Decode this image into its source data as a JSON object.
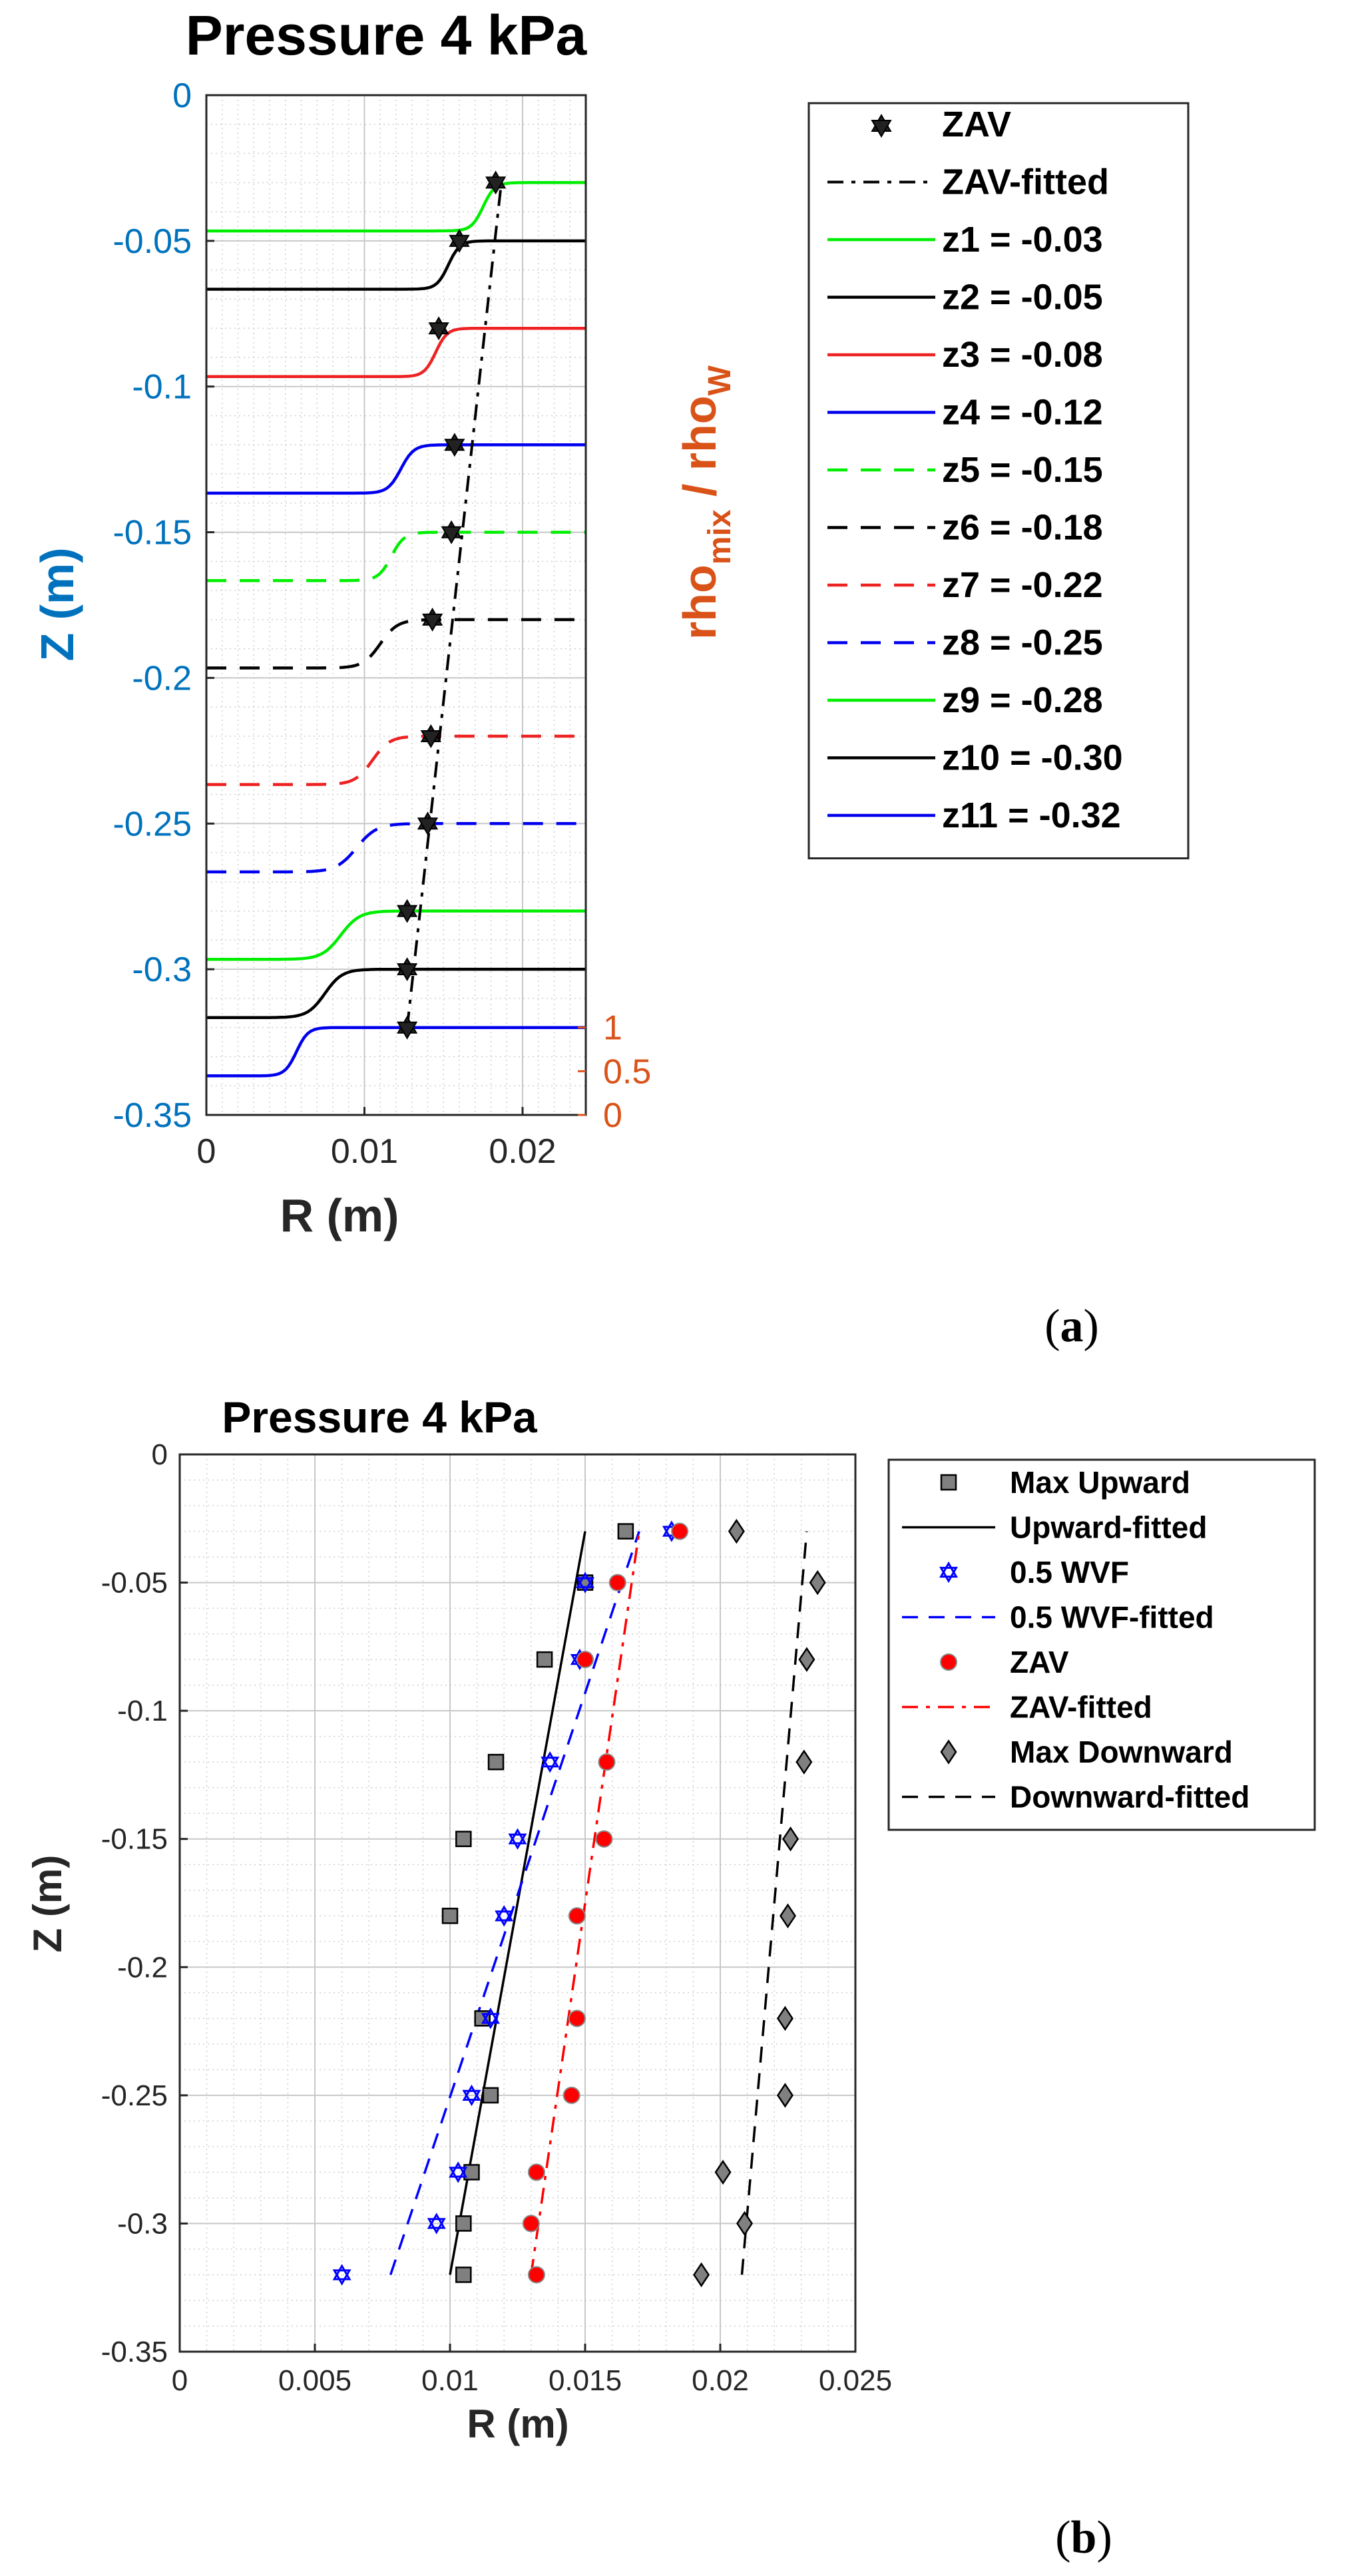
{
  "panel_a": {
    "letter": "a",
    "chart_data": {
      "type": "line",
      "title": "Pressure 4 kPa",
      "xlabel": "R (m)",
      "ylabel": "Z (m)",
      "y2label_main": "rho",
      "y2label_sub1": "mix",
      "y2label_sep": " / rho",
      "y2label_sub2": "W",
      "xlim": [
        0,
        0.024
      ],
      "ylim": [
        -0.35,
        0
      ],
      "xticks": [
        0,
        0.01,
        0.02
      ],
      "xtick_labels": [
        "0",
        "0.01",
        "0.02"
      ],
      "yticks": [
        0,
        -0.05,
        -0.1,
        -0.15,
        -0.2,
        -0.25,
        -0.3,
        -0.35
      ],
      "ytick_labels": [
        "0",
        "-0.05",
        "-0.1",
        "-0.15",
        "-0.2",
        "-0.25",
        "-0.3",
        "-0.35"
      ],
      "y2ticks": [
        0,
        0.5,
        1
      ],
      "y2tick_labels": [
        "0",
        "0.5",
        "1"
      ],
      "grid": true,
      "legend_position": "outside-right",
      "colors": {
        "left_axis": "#0072bd",
        "right_axis": "#d95319"
      },
      "zav": {
        "name": "ZAV",
        "r": [
          0.0183,
          0.016,
          0.0147,
          0.0157,
          0.0155,
          0.0143,
          0.0142,
          0.014,
          0.0127,
          0.0127,
          0.0127
        ],
        "z": [
          -0.03,
          -0.05,
          -0.08,
          -0.12,
          -0.15,
          -0.18,
          -0.22,
          -0.25,
          -0.28,
          -0.3,
          -0.32
        ]
      },
      "zav_fitted": {
        "name": "ZAV-fitted",
        "r": [
          0.0127,
          0.0187
        ],
        "z": [
          -0.32,
          -0.028
        ]
      },
      "profiles": [
        {
          "name": "z1 = -0.03",
          "z": -0.03,
          "level_low": 0.0167,
          "level_high": 0.0333,
          "transition_r": 0.0175,
          "width": 0.0008,
          "color": "#00ee00",
          "dash": "solid"
        },
        {
          "name": "z2 = -0.05",
          "z": -0.05,
          "level_low": 0.0167,
          "level_high": 0.0333,
          "transition_r": 0.0153,
          "width": 0.0008,
          "color": "#000000",
          "dash": "solid"
        },
        {
          "name": "z3 = -0.08",
          "z": -0.08,
          "level_low": 0.0167,
          "level_high": 0.0333,
          "transition_r": 0.0145,
          "width": 0.0008,
          "color": "#ee2222",
          "dash": "solid"
        },
        {
          "name": "z4 = -0.12",
          "z": -0.12,
          "level_low": 0.0167,
          "level_high": 0.0333,
          "transition_r": 0.0123,
          "width": 0.0009,
          "color": "#0000ee",
          "dash": "solid"
        },
        {
          "name": "z5 = -0.15",
          "z": -0.15,
          "level_low": 0.0167,
          "level_high": 0.0333,
          "transition_r": 0.0117,
          "width": 0.0009,
          "color": "#00ee00",
          "dash": "dashed"
        },
        {
          "name": "z6 = -0.18",
          "z": -0.18,
          "level_low": 0.0167,
          "level_high": 0.0333,
          "transition_r": 0.011,
          "width": 0.0012,
          "color": "#000000",
          "dash": "dashed"
        },
        {
          "name": "z7 = -0.22",
          "z": -0.22,
          "level_low": 0.0167,
          "level_high": 0.0333,
          "transition_r": 0.0105,
          "width": 0.0012,
          "color": "#ee2222",
          "dash": "dashed"
        },
        {
          "name": "z8 = -0.25",
          "z": -0.25,
          "level_low": 0.0167,
          "level_high": 0.0333,
          "transition_r": 0.0095,
          "width": 0.0014,
          "color": "#0000ee",
          "dash": "dashed"
        },
        {
          "name": "z9 = -0.28",
          "z": -0.28,
          "level_low": 0.0167,
          "level_high": 0.0333,
          "transition_r": 0.0085,
          "width": 0.0013,
          "color": "#00ee00",
          "dash": "solid"
        },
        {
          "name": "z10 = -0.30",
          "z": -0.3,
          "level_low": 0.0167,
          "level_high": 0.0333,
          "transition_r": 0.0075,
          "width": 0.0012,
          "color": "#000000",
          "dash": "solid"
        },
        {
          "name": "z11 = -0.32",
          "z": -0.32,
          "level_low": 0.0167,
          "level_high": 0.0333,
          "transition_r": 0.0057,
          "width": 0.0008,
          "color": "#0000ee",
          "dash": "solid"
        }
      ]
    }
  },
  "panel_b": {
    "letter": "b",
    "chart_data": {
      "type": "scatter",
      "title": "Pressure 4 kPa",
      "xlabel": "R (m)",
      "ylabel": "Z (m)",
      "xlim": [
        0,
        0.025
      ],
      "ylim": [
        -0.35,
        0
      ],
      "xticks": [
        0,
        0.005,
        0.01,
        0.015,
        0.02,
        0.025
      ],
      "xtick_labels": [
        "0",
        "0.005",
        "0.01",
        "0.015",
        "0.02",
        "0.025"
      ],
      "yticks": [
        0,
        -0.05,
        -0.1,
        -0.15,
        -0.2,
        -0.25,
        -0.3,
        -0.35
      ],
      "ytick_labels": [
        "0",
        "-0.05",
        "-0.1",
        "-0.15",
        "-0.2",
        "-0.25",
        "-0.3",
        "-0.35"
      ],
      "grid": true,
      "legend_position": "outside-right",
      "series": [
        {
          "name": "Max Upward",
          "marker": "square",
          "color": "#808080",
          "x": [
            0.0165,
            0.015,
            0.0135,
            0.0117,
            0.0105,
            0.01,
            0.0112,
            0.0115,
            0.0108,
            0.0105,
            0.0105
          ],
          "y": [
            -0.03,
            -0.05,
            -0.08,
            -0.12,
            -0.15,
            -0.18,
            -0.22,
            -0.25,
            -0.28,
            -0.3,
            -0.32
          ]
        },
        {
          "name": "0.5 WVF",
          "marker": "hexagram",
          "color": "#0000ff",
          "x": [
            0.0182,
            0.015,
            0.0148,
            0.0137,
            0.0125,
            0.012,
            0.0115,
            0.0108,
            0.0103,
            0.0095,
            0.006
          ],
          "y": [
            -0.03,
            -0.05,
            -0.08,
            -0.12,
            -0.15,
            -0.18,
            -0.22,
            -0.25,
            -0.28,
            -0.3,
            -0.32
          ]
        },
        {
          "name": "ZAV",
          "marker": "circle",
          "color": "#ff0000",
          "x": [
            0.0185,
            0.0162,
            0.015,
            0.0158,
            0.0157,
            0.0147,
            0.0147,
            0.0145,
            0.0132,
            0.013,
            0.0132
          ],
          "y": [
            -0.03,
            -0.05,
            -0.08,
            -0.12,
            -0.15,
            -0.18,
            -0.22,
            -0.25,
            -0.28,
            -0.3,
            -0.32
          ]
        },
        {
          "name": "Max Downward",
          "marker": "diamond",
          "color": "#808080",
          "x": [
            0.0206,
            0.0236,
            0.0232,
            0.0231,
            0.0226,
            0.0225,
            0.0224,
            0.0224,
            0.0201,
            0.0209,
            0.0193
          ],
          "y": [
            -0.03,
            -0.05,
            -0.08,
            -0.12,
            -0.15,
            -0.18,
            -0.22,
            -0.25,
            -0.28,
            -0.3,
            -0.32
          ]
        }
      ],
      "fits": [
        {
          "name": "Upward-fitted",
          "color": "#000000",
          "dash": "solid",
          "x": [
            0.01,
            0.015
          ],
          "y": [
            -0.32,
            -0.03
          ]
        },
        {
          "name": "0.5 WVF-fitted",
          "color": "#0000ff",
          "dash": "dashed",
          "x": [
            0.0078,
            0.017
          ],
          "y": [
            -0.32,
            -0.03
          ]
        },
        {
          "name": "ZAV-fitted",
          "color": "#ff0000",
          "dash": "dashdot",
          "x": [
            0.013,
            0.017
          ],
          "y": [
            -0.32,
            -0.03
          ]
        },
        {
          "name": "Downward-fitted",
          "color": "#000000",
          "dash": "dashed",
          "x": [
            0.0208,
            0.0232
          ],
          "y": [
            -0.32,
            -0.03
          ]
        }
      ]
    }
  }
}
